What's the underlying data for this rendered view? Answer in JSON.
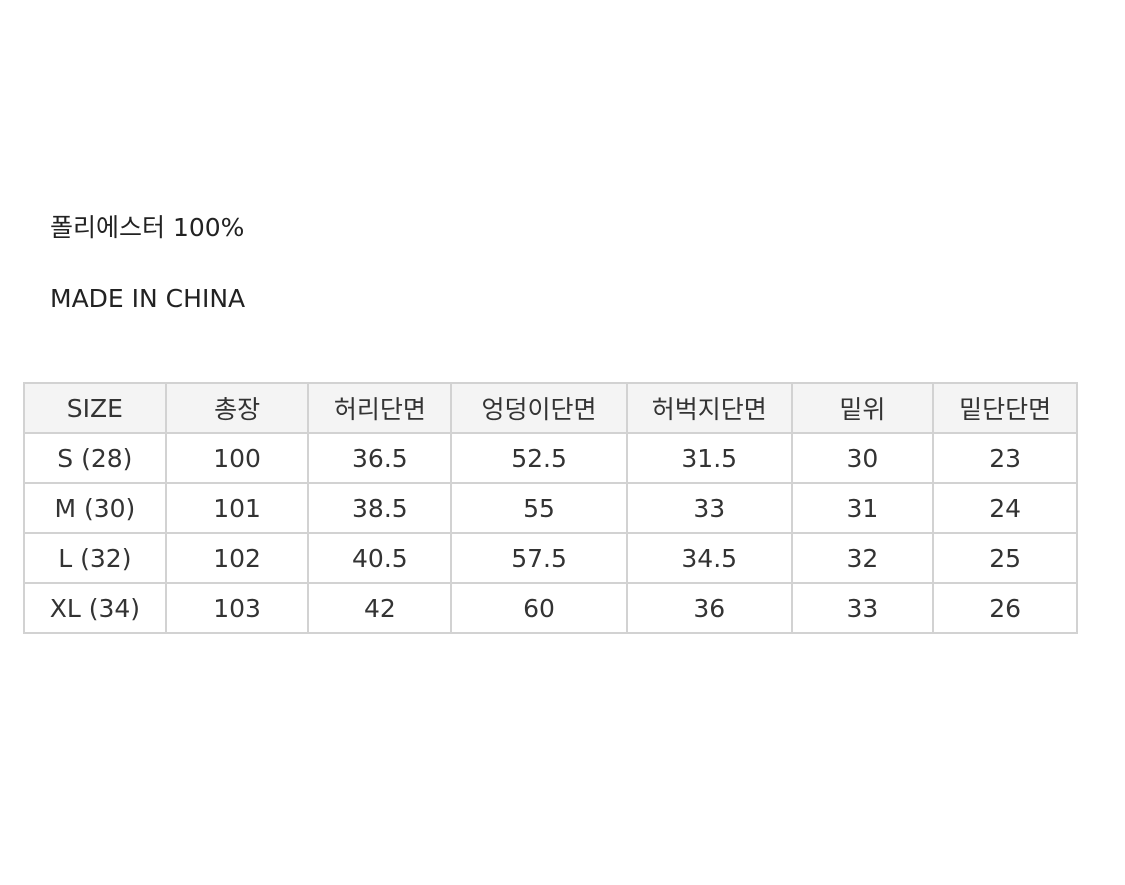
{
  "material": "폴리에스터 100%",
  "origin": "MADE IN CHINA",
  "size_table": {
    "headers": [
      "SIZE",
      "총장",
      "허리단면",
      "엉덩이단면",
      "허벅지단면",
      "밑위",
      "밑단단면"
    ],
    "rows": [
      [
        "S (28)",
        "100",
        "36.5",
        "52.5",
        "31.5",
        "30",
        "23"
      ],
      [
        "M (30)",
        "101",
        "38.5",
        "55",
        "33",
        "31",
        "24"
      ],
      [
        "L (32)",
        "102",
        "40.5",
        "57.5",
        "34.5",
        "32",
        "25"
      ],
      [
        "XL (34)",
        "103",
        "42",
        "60",
        "36",
        "33",
        "26"
      ]
    ]
  }
}
